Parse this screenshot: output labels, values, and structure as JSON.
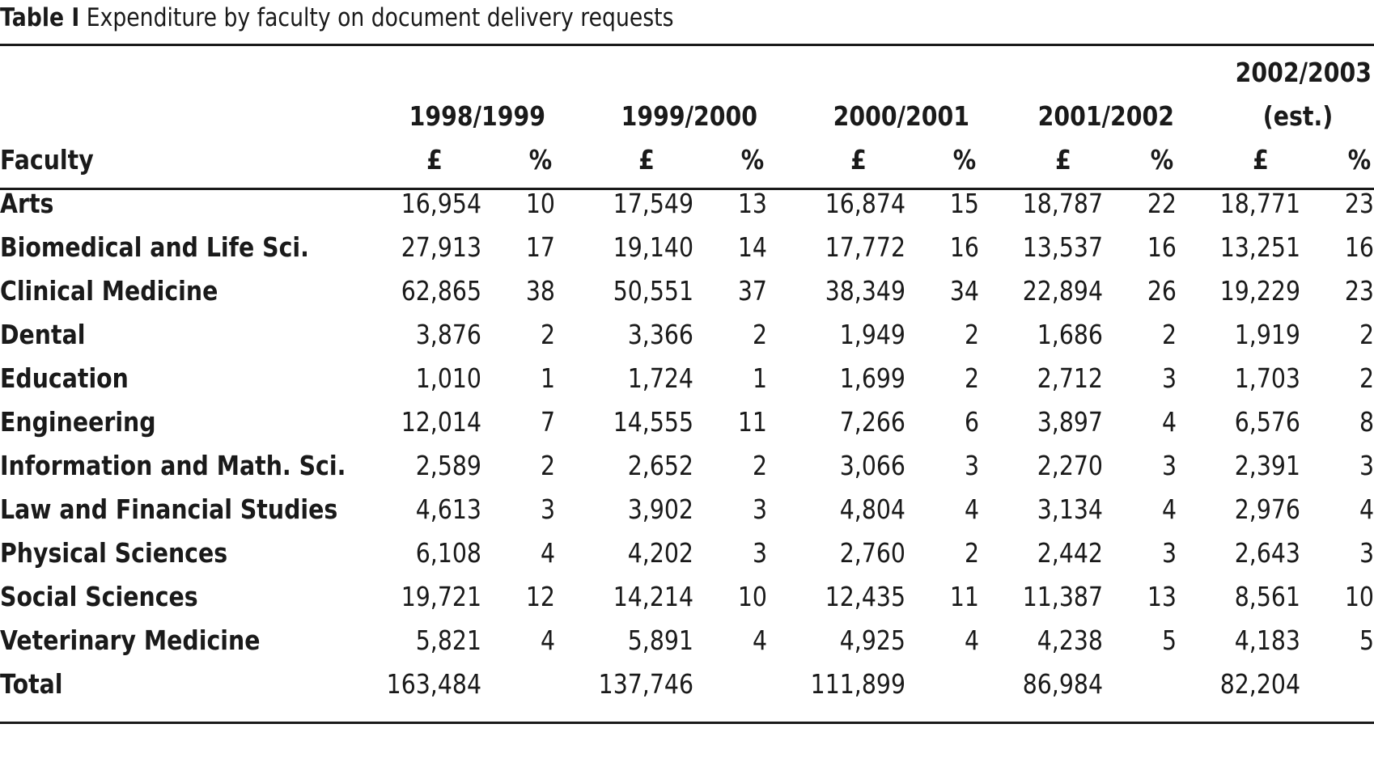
{
  "caption": {
    "label": "Table I",
    "text": "Expenditure by faculty on document delivery requests"
  },
  "header": {
    "years": [
      "1998/1999",
      "1999/2000",
      "2000/2001",
      "2001/2002",
      "2002/2003"
    ],
    "last_year_note": "(est.)",
    "faculty_label": "Faculty",
    "pound_label": "£",
    "percent_label": "%"
  },
  "rows": [
    {
      "faculty": "Arts",
      "values": [
        "16,954",
        "10",
        "17,549",
        "13",
        "16,874",
        "15",
        "18,787",
        "22",
        "18,771",
        "23"
      ]
    },
    {
      "faculty": "Biomedical and Life Sci.",
      "values": [
        "27,913",
        "17",
        "19,140",
        "14",
        "17,772",
        "16",
        "13,537",
        "16",
        "13,251",
        "16"
      ]
    },
    {
      "faculty": "Clinical Medicine",
      "values": [
        "62,865",
        "38",
        "50,551",
        "37",
        "38,349",
        "34",
        "22,894",
        "26",
        "19,229",
        "23"
      ]
    },
    {
      "faculty": "Dental",
      "values": [
        "3,876",
        "2",
        "3,366",
        "2",
        "1,949",
        "2",
        "1,686",
        "2",
        "1,919",
        "2"
      ]
    },
    {
      "faculty": "Education",
      "values": [
        "1,010",
        "1",
        "1,724",
        "1",
        "1,699",
        "2",
        "2,712",
        "3",
        "1,703",
        "2"
      ]
    },
    {
      "faculty": "Engineering",
      "values": [
        "12,014",
        "7",
        "14,555",
        "11",
        "7,266",
        "6",
        "3,897",
        "4",
        "6,576",
        "8"
      ]
    },
    {
      "faculty": "Information and Math. Sci.",
      "values": [
        "2,589",
        "2",
        "2,652",
        "2",
        "3,066",
        "3",
        "2,270",
        "3",
        "2,391",
        "3"
      ]
    },
    {
      "faculty": "Law and Financial Studies",
      "values": [
        "4,613",
        "3",
        "3,902",
        "3",
        "4,804",
        "4",
        "3,134",
        "4",
        "2,976",
        "4"
      ]
    },
    {
      "faculty": "Physical Sciences",
      "values": [
        "6,108",
        "4",
        "4,202",
        "3",
        "2,760",
        "2",
        "2,442",
        "3",
        "2,643",
        "3"
      ]
    },
    {
      "faculty": "Social Sciences",
      "values": [
        "19,721",
        "12",
        "14,214",
        "10",
        "12,435",
        "11",
        "11,387",
        "13",
        "8,561",
        "10"
      ]
    },
    {
      "faculty": "Veterinary Medicine",
      "values": [
        "5,821",
        "4",
        "5,891",
        "4",
        "4,925",
        "4",
        "4,238",
        "5",
        "4,183",
        "5"
      ]
    }
  ],
  "total": {
    "label": "Total",
    "values": [
      "163,484",
      "",
      "137,746",
      "",
      "111,899",
      "",
      "86,984",
      "",
      "82,204",
      ""
    ]
  }
}
